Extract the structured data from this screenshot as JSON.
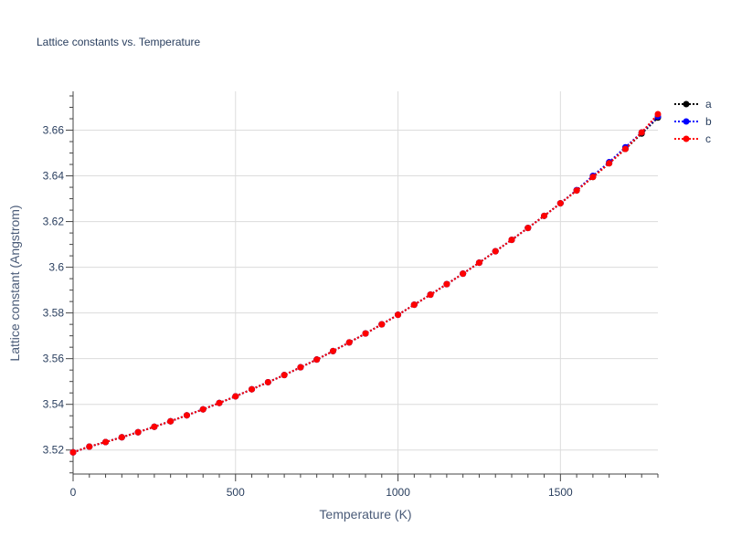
{
  "chart_data": {
    "type": "line",
    "title": "Lattice constants vs. Temperature",
    "xlabel": "Temperature (K)",
    "ylabel": "Lattice constant (Angstrom)",
    "xlim": [
      0,
      1800
    ],
    "ylim": [
      3.5095,
      3.677
    ],
    "x_ticks": [
      0,
      500,
      1000,
      1500
    ],
    "x_tick_labels": [
      "0",
      "500",
      "1000",
      "1500"
    ],
    "y_ticks": [
      3.52,
      3.54,
      3.56,
      3.58,
      3.6,
      3.62,
      3.64,
      3.66
    ],
    "y_tick_labels": [
      "3.52",
      "3.54",
      "3.56",
      "3.58",
      "3.6",
      "3.62",
      "3.64",
      "3.66"
    ],
    "grid": true,
    "legend_position": "top-right",
    "x": [
      0,
      50,
      100,
      150,
      200,
      250,
      300,
      350,
      400,
      450,
      500,
      550,
      600,
      650,
      700,
      750,
      800,
      850,
      900,
      950,
      1000,
      1050,
      1100,
      1150,
      1200,
      1250,
      1300,
      1350,
      1400,
      1450,
      1500,
      1550,
      1600,
      1650,
      1700,
      1750,
      1800
    ],
    "series": [
      {
        "name": "a",
        "color": "#000000",
        "values": [
          3.519,
          3.5215,
          3.5235,
          3.5256,
          3.5278,
          3.5302,
          3.5326,
          3.5352,
          3.5378,
          3.5406,
          3.5435,
          3.5466,
          3.5497,
          3.5528,
          3.5562,
          3.5596,
          3.5633,
          3.5671,
          3.571,
          3.575,
          3.5792,
          3.5836,
          3.588,
          3.5926,
          3.5972,
          3.602,
          3.607,
          3.612,
          3.6172,
          3.6225,
          3.628,
          3.6336,
          3.6395,
          3.6455,
          3.6518,
          3.6585,
          3.6655
        ]
      },
      {
        "name": "b",
        "color": "#0000ff",
        "values": [
          3.519,
          3.5215,
          3.5235,
          3.5256,
          3.5278,
          3.5302,
          3.5326,
          3.5352,
          3.5378,
          3.5406,
          3.5435,
          3.5466,
          3.5497,
          3.5528,
          3.5562,
          3.5596,
          3.5633,
          3.5671,
          3.571,
          3.575,
          3.5792,
          3.5836,
          3.588,
          3.5926,
          3.5972,
          3.602,
          3.607,
          3.612,
          3.6172,
          3.6225,
          3.628,
          3.6338,
          3.64,
          3.646,
          3.6525,
          3.659,
          3.666
        ]
      },
      {
        "name": "c",
        "color": "#ff0000",
        "values": [
          3.519,
          3.5215,
          3.5235,
          3.5256,
          3.5278,
          3.5302,
          3.5326,
          3.5352,
          3.5378,
          3.5406,
          3.5435,
          3.5466,
          3.5497,
          3.5528,
          3.5562,
          3.5596,
          3.5633,
          3.5671,
          3.571,
          3.575,
          3.5792,
          3.5836,
          3.588,
          3.5926,
          3.5972,
          3.602,
          3.607,
          3.612,
          3.6172,
          3.6225,
          3.628,
          3.6336,
          3.6395,
          3.6455,
          3.6518,
          3.659,
          3.667
        ]
      }
    ]
  }
}
